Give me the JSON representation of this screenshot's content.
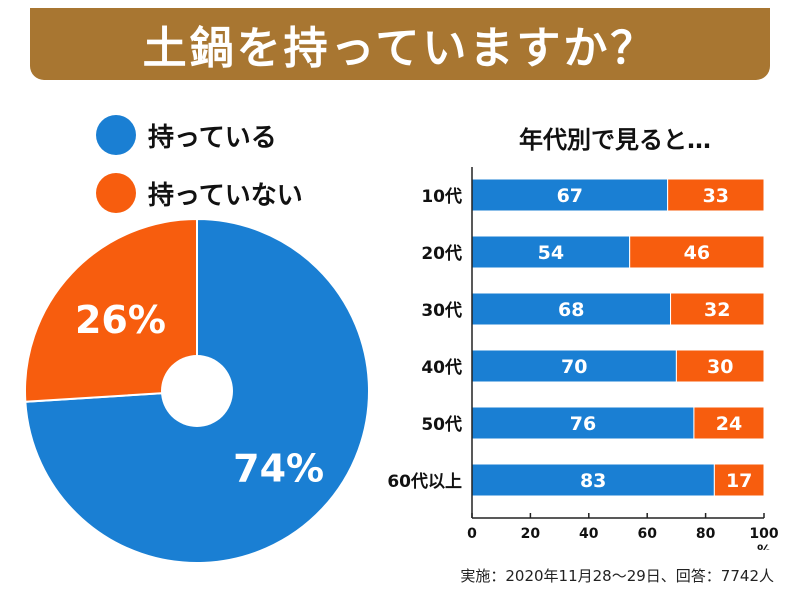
{
  "title": "土鍋を持っていますか？",
  "colors": {
    "have": "#1a7fd3",
    "not_have": "#f75d0e",
    "banner": "#a87631"
  },
  "legend": {
    "have": "持っている",
    "not_have": "持っていない"
  },
  "subtitle": "年代別で見ると…",
  "footer": "実施：2020年11月28～29日、回答：7742人",
  "chart_data": [
    {
      "type": "pie",
      "categories": [
        "持っている",
        "持っていない"
      ],
      "values": [
        74,
        26
      ],
      "value_labels": [
        "74%",
        "26%"
      ],
      "unit": "%"
    },
    {
      "type": "bar",
      "orientation": "horizontal",
      "stacked": true,
      "title": "年代別で見ると…",
      "categories": [
        "10代",
        "20代",
        "30代",
        "40代",
        "50代",
        "60代以上"
      ],
      "series": [
        {
          "name": "持っている",
          "values": [
            67,
            54,
            68,
            70,
            76,
            83
          ]
        },
        {
          "name": "持っていない",
          "values": [
            33,
            46,
            32,
            30,
            24,
            17
          ]
        }
      ],
      "xlim": [
        0,
        100
      ],
      "xticks": [
        "0",
        "20",
        "40",
        "60",
        "80",
        "100"
      ],
      "xunit": "%",
      "grid": false
    }
  ]
}
